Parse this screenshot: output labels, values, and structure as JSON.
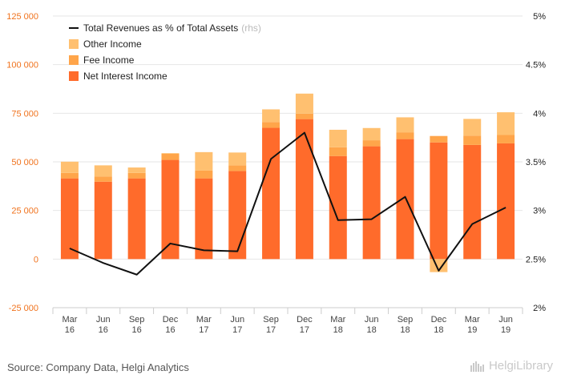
{
  "source_text": "Source: Company Data, Helgi Analytics",
  "brand": {
    "name": "HelgiLibrary",
    "icon": "helgi-logo-icon"
  },
  "colors": {
    "net_interest": "#FF6B2B",
    "fee": "#FFA54A",
    "other": "#FFC070",
    "line": "#111111",
    "left_axis_text": "#F0731E",
    "grid": "#E6E6E6"
  },
  "chart_data": {
    "type": "bar",
    "stacked": true,
    "categories": [
      "Mar 16",
      "Jun 16",
      "Sep 16",
      "Dec 16",
      "Mar 17",
      "Jun 17",
      "Sep 17",
      "Dec 17",
      "Mar 18",
      "Jun 18",
      "Sep 18",
      "Dec 18",
      "Mar 19",
      "Jun 19"
    ],
    "category_lines": [
      [
        "Mar",
        "16"
      ],
      [
        "Jun",
        "16"
      ],
      [
        "Sep",
        "16"
      ],
      [
        "Dec",
        "16"
      ],
      [
        "Mar",
        "17"
      ],
      [
        "Jun",
        "17"
      ],
      [
        "Sep",
        "17"
      ],
      [
        "Dec",
        "17"
      ],
      [
        "Mar",
        "18"
      ],
      [
        "Jun",
        "18"
      ],
      [
        "Sep",
        "18"
      ],
      [
        "Dec",
        "18"
      ],
      [
        "Mar",
        "19"
      ],
      [
        "Jun",
        "19"
      ]
    ],
    "series": [
      {
        "name": "Net Interest Income",
        "axis": "left",
        "values": [
          41500,
          39800,
          41500,
          51000,
          41500,
          45300,
          67500,
          72000,
          53000,
          58000,
          61700,
          60000,
          58700,
          59500
        ]
      },
      {
        "name": "Fee Income",
        "axis": "left",
        "values": [
          2800,
          2700,
          2800,
          3200,
          4000,
          2900,
          3000,
          2800,
          4500,
          3100,
          3500,
          3300,
          4800,
          4300
        ]
      },
      {
        "name": "Other Income",
        "axis": "left",
        "values": [
          5800,
          5700,
          2800,
          300,
          9500,
          6600,
          6500,
          10300,
          9000,
          6300,
          7700,
          -6700,
          8600,
          11700
        ]
      },
      {
        "name": "Total Revenues as % of Total Assets",
        "legend_suffix": "(rhs)",
        "type": "line",
        "axis": "right",
        "values": [
          2.61,
          2.46,
          2.34,
          2.66,
          2.59,
          2.58,
          3.53,
          3.8,
          2.9,
          2.91,
          3.14,
          2.38,
          2.86,
          3.03
        ]
      }
    ],
    "legend_order": [
      "Total Revenues as % of Total Assets",
      "Other Income",
      "Fee Income",
      "Net Interest Income"
    ],
    "legend_position": "top-left",
    "y_left": {
      "ylim": [
        -25000,
        125000
      ],
      "ticks": [
        -25000,
        0,
        25000,
        50000,
        75000,
        100000,
        125000
      ],
      "tick_labels": [
        "-25 000",
        "0",
        "25 000",
        "50 000",
        "75 000",
        "100 000",
        "125 000"
      ]
    },
    "y_right": {
      "ylim": [
        2,
        5
      ],
      "ticks": [
        2,
        2.5,
        3,
        3.5,
        4,
        4.5,
        5
      ],
      "tick_labels": [
        "2%",
        "2.5%",
        "3%",
        "3.5%",
        "4%",
        "4.5%",
        "5%"
      ]
    },
    "grid": true
  }
}
